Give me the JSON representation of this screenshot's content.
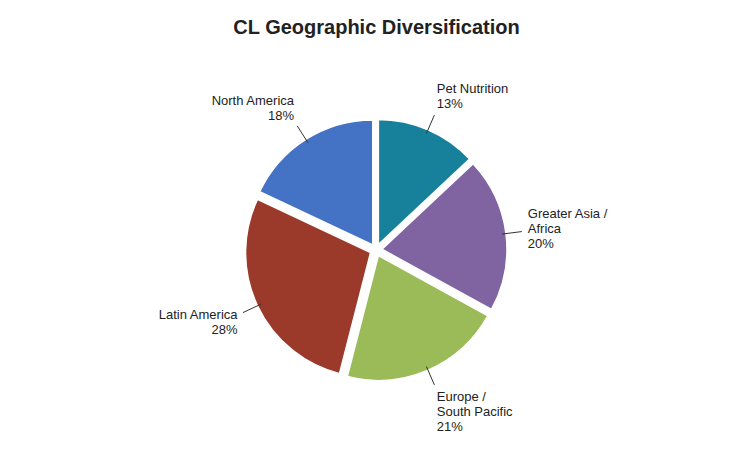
{
  "chart_data": {
    "type": "pie",
    "title": "CL Geographic Diversification",
    "categories": [
      "North America\n18%",
      "Latin America\n28%",
      "Europe /\nSouth Pacific\n21%",
      "Greater Asia /\nAfrica\n20%",
      "Pet Nutrition\n13%"
    ],
    "values": [
      18,
      28,
      21,
      20,
      13
    ],
    "colors": [
      "#4472C4",
      "#9B3A2A",
      "#9BBB59",
      "#8064A2",
      "#17819C"
    ]
  }
}
